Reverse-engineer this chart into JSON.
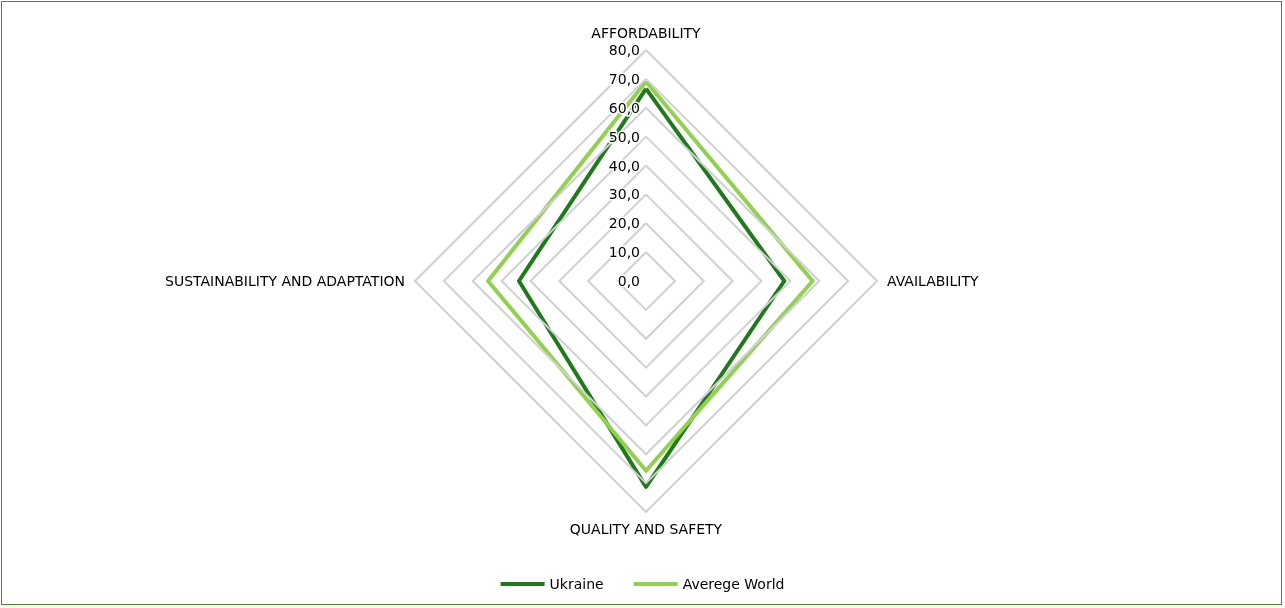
{
  "chart_data": {
    "type": "radar",
    "categories": [
      "AFFORDABILITY",
      "AVAILABILITY",
      "QUALITY AND SAFETY",
      "SUSTAINABILITY AND ADAPTATION"
    ],
    "series": [
      {
        "name": "Ukraine",
        "color": "#1f7a1a",
        "values": [
          66.6,
          47.9,
          71.3,
          44.0
        ]
      },
      {
        "name": "Averege World",
        "color": "#92d050",
        "values": [
          69.1,
          57.7,
          65.7,
          54.7
        ]
      }
    ],
    "ylim": [
      0,
      80
    ],
    "yticks": [
      {
        "value": 0,
        "label": "0,0"
      },
      {
        "value": 10,
        "label": "10,0"
      },
      {
        "value": 20,
        "label": "20,0"
      },
      {
        "value": 30,
        "label": "30,0"
      },
      {
        "value": 40,
        "label": "40,0"
      },
      {
        "value": 50,
        "label": "50,0"
      },
      {
        "value": 60,
        "label": "60,0"
      },
      {
        "value": 70,
        "label": "70,0"
      },
      {
        "value": 80,
        "label": "80,0"
      }
    ],
    "legend": "bottom",
    "marker": "none",
    "line_style": "solid"
  }
}
